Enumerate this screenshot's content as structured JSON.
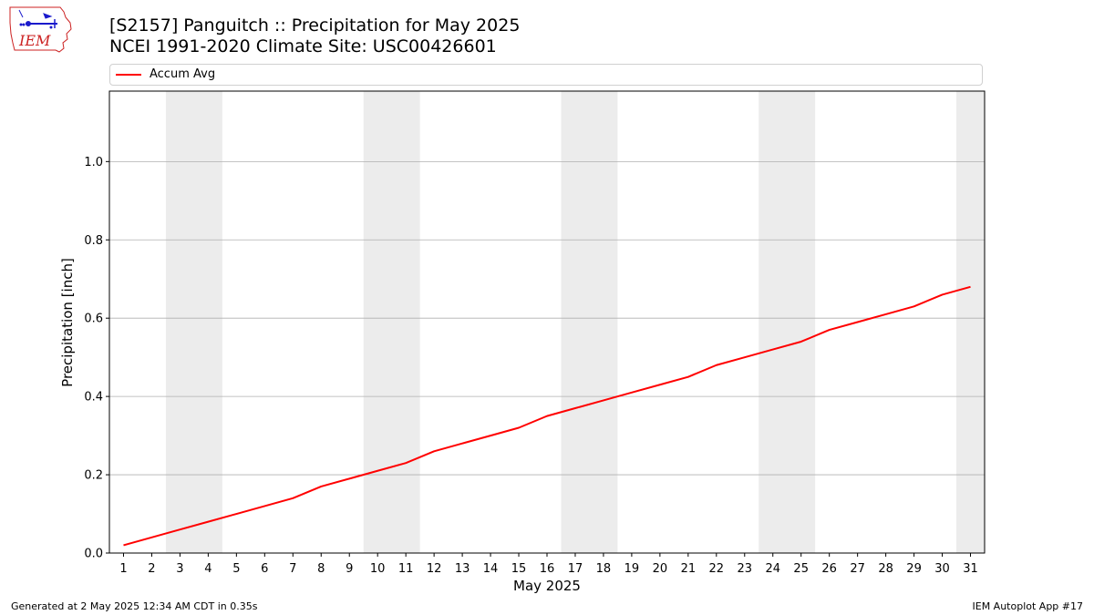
{
  "header": {
    "title_line1": "[S2157] Panguitch :: Precipitation for May 2025",
    "title_line2": "NCEI 1991-2020 Climate Site: USC00426601",
    "logo_text": "IEM"
  },
  "footer": {
    "left": "Generated at 2 May 2025 12:34 AM CDT in 0.35s",
    "right": "IEM Autoplot App #17"
  },
  "colors": {
    "line": "#ff0000",
    "weekend_band": "#ececec",
    "grid": "#b0b0b0",
    "logo_red": "#cc2222",
    "logo_blue": "#1a1acc"
  },
  "chart_data": {
    "type": "line",
    "xlabel": "May 2025",
    "ylabel": "Precipitation [inch]",
    "x": [
      1,
      2,
      3,
      4,
      5,
      6,
      7,
      8,
      9,
      10,
      11,
      12,
      13,
      14,
      15,
      16,
      17,
      18,
      19,
      20,
      21,
      22,
      23,
      24,
      25,
      26,
      27,
      28,
      29,
      30,
      31
    ],
    "series": [
      {
        "name": "Accum Avg",
        "values": [
          0.02,
          0.04,
          0.06,
          0.08,
          0.1,
          0.12,
          0.14,
          0.17,
          0.19,
          0.21,
          0.23,
          0.26,
          0.28,
          0.3,
          0.32,
          0.35,
          0.37,
          0.39,
          0.41,
          0.43,
          0.45,
          0.48,
          0.5,
          0.52,
          0.54,
          0.57,
          0.59,
          0.61,
          0.63,
          0.66,
          0.68
        ]
      }
    ],
    "xlim": [
      0.5,
      31.5
    ],
    "ylim": [
      0,
      1.18
    ],
    "yticks": [
      0.0,
      0.2,
      0.4,
      0.6,
      0.8,
      1.0
    ],
    "ytick_labels": [
      "0.0",
      "0.2",
      "0.4",
      "0.6",
      "0.8",
      "1.0"
    ],
    "xtick_labels": [
      "1",
      "2",
      "3",
      "4",
      "5",
      "6",
      "7",
      "8",
      "9",
      "10",
      "11",
      "12",
      "13",
      "14",
      "15",
      "16",
      "17",
      "18",
      "19",
      "20",
      "21",
      "22",
      "23",
      "24",
      "25",
      "26",
      "27",
      "28",
      "29",
      "30",
      "31"
    ],
    "weekend_bands": [
      [
        2.5,
        4.5
      ],
      [
        9.5,
        11.5
      ],
      [
        16.5,
        18.5
      ],
      [
        23.5,
        25.5
      ],
      [
        30.5,
        31.5
      ]
    ],
    "grid": "y",
    "legend_position": "top"
  }
}
